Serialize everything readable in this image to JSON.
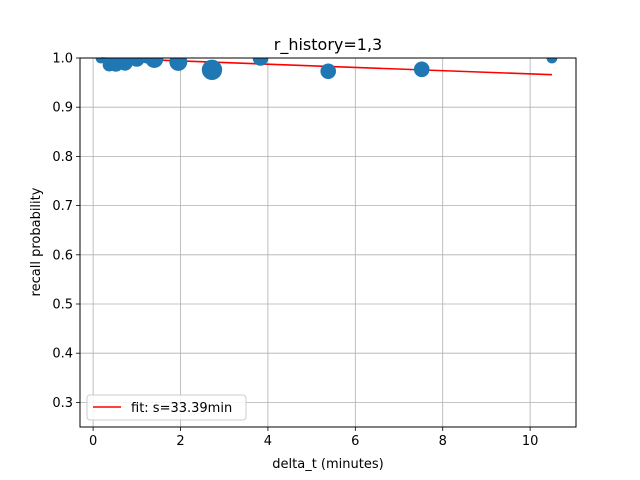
{
  "chart_data": {
    "type": "scatter",
    "title": "r_history=1,3",
    "xlabel": "delta_t (minutes)",
    "ylabel": "recall probability",
    "xlim": [
      -0.3,
      11.05
    ],
    "ylim": [
      0.25,
      1.0
    ],
    "xticks": [
      0,
      2,
      4,
      6,
      8,
      10
    ],
    "yticks": [
      0.3,
      0.4,
      0.5,
      0.6,
      0.7,
      0.8,
      0.9,
      1.0
    ],
    "xtick_labels": [
      "0",
      "2",
      "4",
      "6",
      "8",
      "10"
    ],
    "ytick_labels": [
      "0.3",
      "0.4",
      "0.5",
      "0.6",
      "0.7",
      "0.8",
      "0.9",
      "1.0"
    ],
    "grid": true,
    "legend_position": "lower-left",
    "colors": {
      "points": "#1f77b4",
      "fit": "#ff0000",
      "grid": "#b0b0b0"
    },
    "series": [
      {
        "kind": "scatter",
        "points": [
          {
            "x": 0.18,
            "y": 1.0,
            "weight": 2
          },
          {
            "x": 0.27,
            "y": 1.0,
            "weight": 2
          },
          {
            "x": 0.37,
            "y": 0.986,
            "weight": 3
          },
          {
            "x": 0.44,
            "y": 0.994,
            "weight": 3
          },
          {
            "x": 0.52,
            "y": 0.988,
            "weight": 4
          },
          {
            "x": 0.58,
            "y": 1.0,
            "weight": 3
          },
          {
            "x": 0.66,
            "y": 0.996,
            "weight": 3
          },
          {
            "x": 0.73,
            "y": 0.99,
            "weight": 4
          },
          {
            "x": 0.82,
            "y": 1.0,
            "weight": 3
          },
          {
            "x": 1.0,
            "y": 0.998,
            "weight": 4
          },
          {
            "x": 1.22,
            "y": 1.0,
            "weight": 2
          },
          {
            "x": 1.4,
            "y": 0.998,
            "weight": 5
          },
          {
            "x": 1.95,
            "y": 0.992,
            "weight": 5
          },
          {
            "x": 2.72,
            "y": 0.976,
            "weight": 6
          },
          {
            "x": 3.83,
            "y": 1.0,
            "weight": 4
          },
          {
            "x": 5.38,
            "y": 0.973,
            "weight": 4
          },
          {
            "x": 7.52,
            "y": 0.977,
            "weight": 4
          },
          {
            "x": 10.5,
            "y": 1.0,
            "weight": 2
          }
        ]
      },
      {
        "kind": "line",
        "name": "fit: s=33.39min",
        "x": [
          0.18,
          10.5
        ],
        "y": [
          1.0,
          0.966
        ]
      }
    ]
  }
}
